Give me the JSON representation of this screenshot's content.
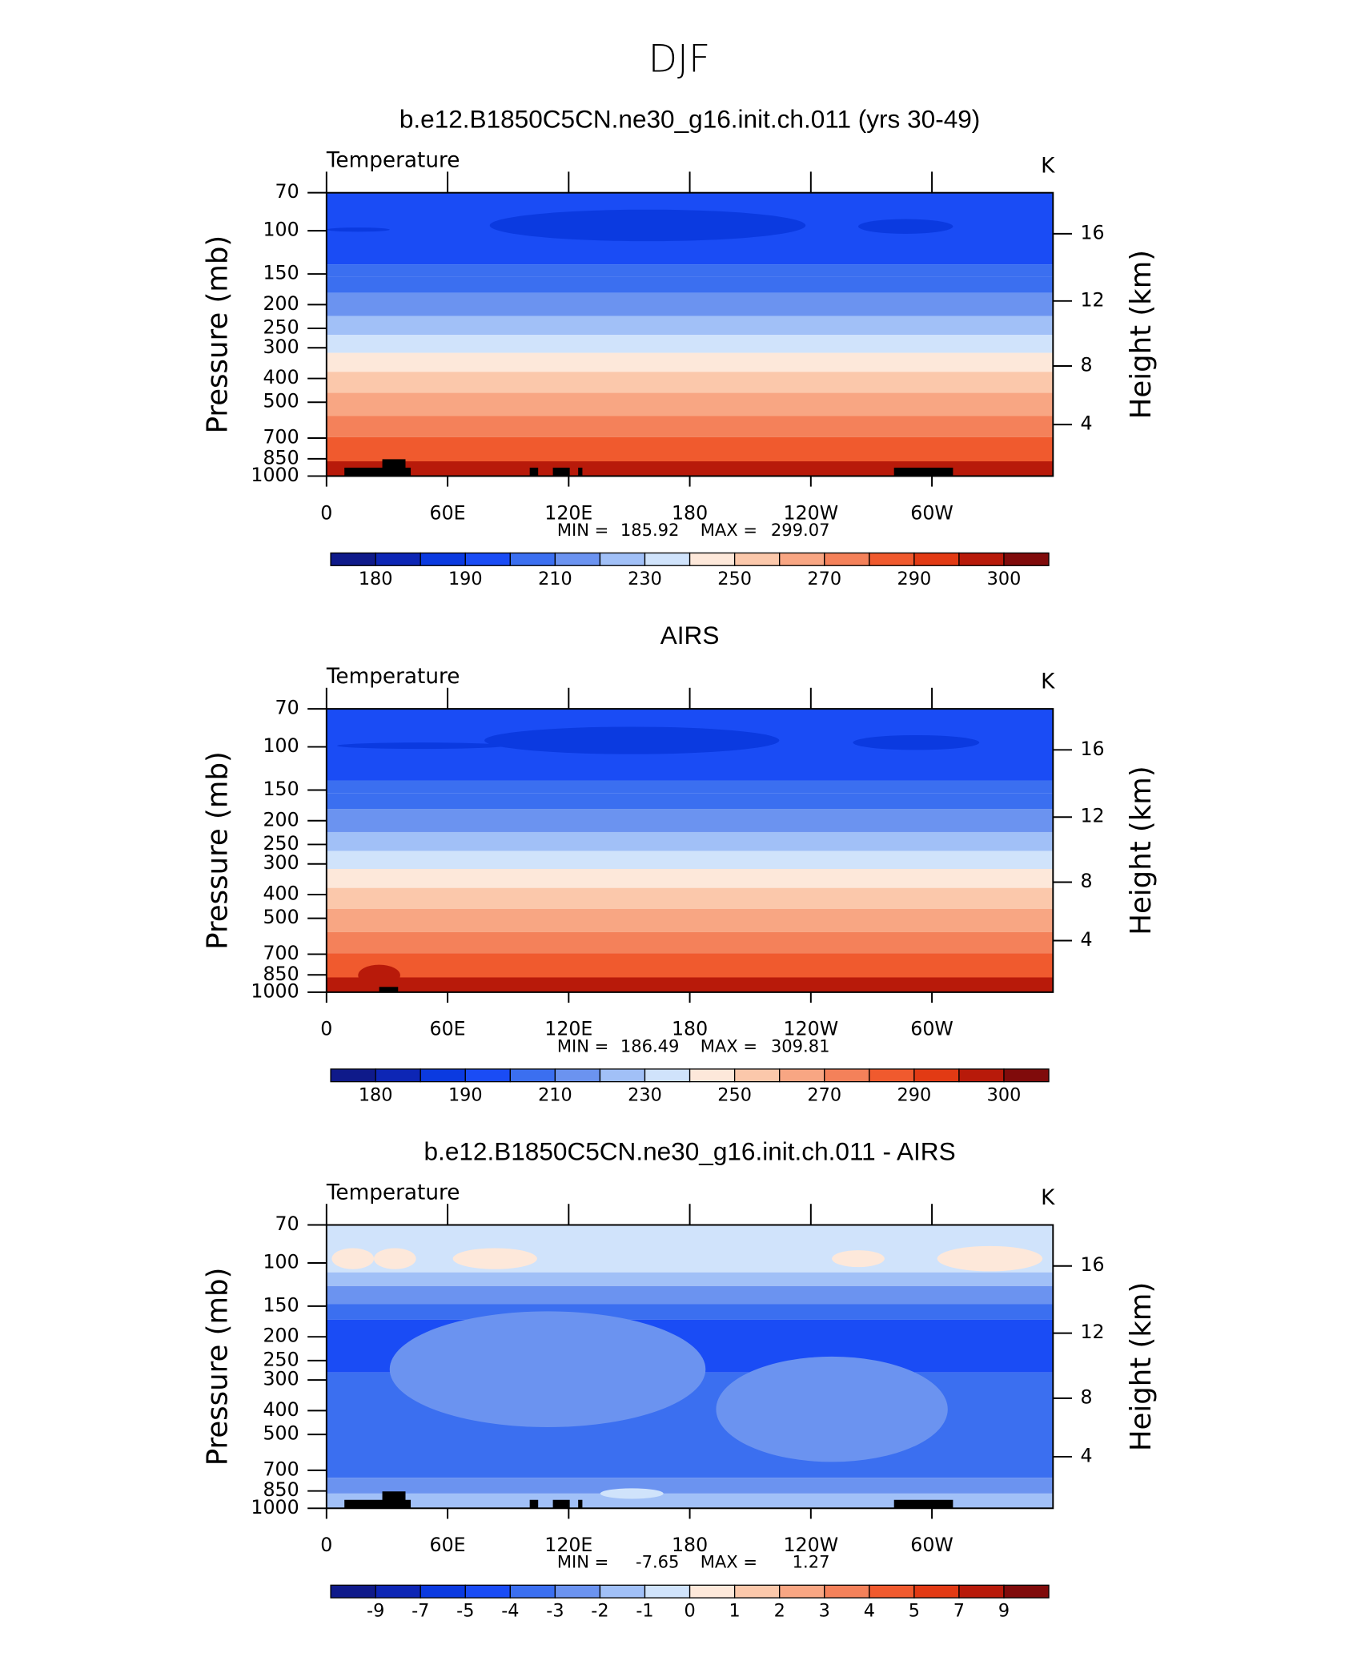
{
  "title": "DJF",
  "panels": [
    {
      "title": "b.e12.B1850C5CN.ne30_g16.init.ch.011 (yrs 30-49)",
      "variable": "Temperature",
      "units": "K",
      "y_label": "Pressure (mb)",
      "y2_label": "Height (km)",
      "y_log": true,
      "ylim": [
        70,
        1000
      ],
      "yticks": [
        70,
        100,
        150,
        200,
        250,
        300,
        400,
        500,
        700,
        850,
        1000
      ],
      "y2ticks": [
        4,
        8,
        12,
        16
      ],
      "xlim": [
        0,
        360
      ],
      "xticks": [
        0,
        {
          "value": 60,
          "label": "60E"
        },
        {
          "value": 120,
          "label": "120E"
        },
        180,
        {
          "value": 240,
          "label": "120W"
        },
        {
          "value": 300,
          "label": "60W"
        }
      ],
      "min_label": "MIN =",
      "min": 185.92,
      "max_label": "MAX =",
      "max": 299.07,
      "colorbar": {
        "colors": [
          "#0f1a8a",
          "#0d26b5",
          "#0b3ae0",
          "#1a4cf5",
          "#3b6ff0",
          "#6b93f0",
          "#a1c0f7",
          "#d0e3fb",
          "#fde8da",
          "#fbc8ab",
          "#f8a683",
          "#f4815a",
          "#f05a2e",
          "#e23a14",
          "#b81a0a",
          "#800b0b"
        ],
        "ticks": [
          180,
          190,
          210,
          230,
          250,
          270,
          290,
          300
        ]
      }
    },
    {
      "title": "AIRS",
      "variable": "Temperature",
      "units": "K",
      "y_label": "Pressure (mb)",
      "y2_label": "Height (km)",
      "y_log": true,
      "ylim": [
        70,
        1000
      ],
      "yticks": [
        70,
        100,
        150,
        200,
        250,
        300,
        400,
        500,
        700,
        850,
        1000
      ],
      "y2ticks": [
        4,
        8,
        12,
        16
      ],
      "xlim": [
        0,
        360
      ],
      "xticks": [
        0,
        {
          "value": 60,
          "label": "60E"
        },
        {
          "value": 120,
          "label": "120E"
        },
        180,
        {
          "value": 240,
          "label": "120W"
        },
        {
          "value": 300,
          "label": "60W"
        }
      ],
      "min_label": "MIN =",
      "min": 186.49,
      "max_label": "MAX =",
      "max": 309.81,
      "colorbar": {
        "colors": [
          "#0f1a8a",
          "#0d26b5",
          "#0b3ae0",
          "#1a4cf5",
          "#3b6ff0",
          "#6b93f0",
          "#a1c0f7",
          "#d0e3fb",
          "#fde8da",
          "#fbc8ab",
          "#f8a683",
          "#f4815a",
          "#f05a2e",
          "#e23a14",
          "#b81a0a",
          "#800b0b"
        ],
        "ticks": [
          180,
          190,
          210,
          230,
          250,
          270,
          290,
          300
        ]
      }
    },
    {
      "title": "b.e12.B1850C5CN.ne30_g16.init.ch.011 - AIRS",
      "variable": "Temperature",
      "units": "K",
      "y_label": "Pressure (mb)",
      "y2_label": "Height (km)",
      "y_log": true,
      "ylim": [
        70,
        1000
      ],
      "yticks": [
        70,
        100,
        150,
        200,
        250,
        300,
        400,
        500,
        700,
        850,
        1000
      ],
      "y2ticks": [
        4,
        8,
        12,
        16
      ],
      "xlim": [
        0,
        360
      ],
      "xticks": [
        0,
        {
          "value": 60,
          "label": "60E"
        },
        {
          "value": 120,
          "label": "120E"
        },
        180,
        {
          "value": 240,
          "label": "120W"
        },
        {
          "value": 300,
          "label": "60W"
        }
      ],
      "min_label": "MIN =",
      "min": -7.65,
      "max_label": "MAX =",
      "max": 1.27,
      "colorbar": {
        "colors": [
          "#0f1a8a",
          "#0d26b5",
          "#0b3ae0",
          "#1a4cf5",
          "#3b6ff0",
          "#6b93f0",
          "#a1c0f7",
          "#d0e3fb",
          "#fde8da",
          "#fbc8ab",
          "#f8a683",
          "#f4815a",
          "#f05a2e",
          "#e23a14",
          "#b81a0a",
          "#800b0b"
        ],
        "ticks": [
          -9,
          -7,
          -5,
          -4,
          -3,
          -2,
          -1,
          0,
          1,
          2,
          3,
          4,
          5,
          7,
          9
        ]
      }
    }
  ]
}
